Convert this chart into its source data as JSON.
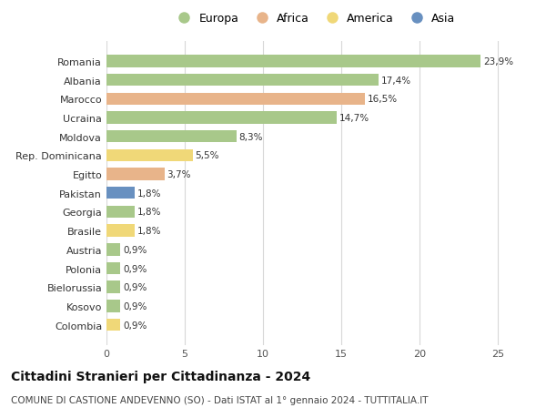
{
  "countries": [
    "Romania",
    "Albania",
    "Marocco",
    "Ucraina",
    "Moldova",
    "Rep. Dominicana",
    "Egitto",
    "Pakistan",
    "Georgia",
    "Brasile",
    "Austria",
    "Polonia",
    "Bielorussia",
    "Kosovo",
    "Colombia"
  ],
  "values": [
    23.9,
    17.4,
    16.5,
    14.7,
    8.3,
    5.5,
    3.7,
    1.8,
    1.8,
    1.8,
    0.9,
    0.9,
    0.9,
    0.9,
    0.9
  ],
  "labels": [
    "23,9%",
    "17,4%",
    "16,5%",
    "14,7%",
    "8,3%",
    "5,5%",
    "3,7%",
    "1,8%",
    "1,8%",
    "1,8%",
    "0,9%",
    "0,9%",
    "0,9%",
    "0,9%",
    "0,9%"
  ],
  "continents": [
    "Europa",
    "Europa",
    "Africa",
    "Europa",
    "Europa",
    "America",
    "Africa",
    "Asia",
    "Europa",
    "America",
    "Europa",
    "Europa",
    "Europa",
    "Europa",
    "America"
  ],
  "continent_colors": {
    "Europa": "#a8c88a",
    "Africa": "#e8b48a",
    "America": "#f0d878",
    "Asia": "#6890c0"
  },
  "legend_order": [
    "Europa",
    "Africa",
    "America",
    "Asia"
  ],
  "title": "Cittadini Stranieri per Cittadinanza - 2024",
  "subtitle": "COMUNE DI CASTIONE ANDEVENNO (SO) - Dati ISTAT al 1° gennaio 2024 - TUTTITALIA.IT",
  "xlim": [
    0,
    26.5
  ],
  "xticks": [
    0,
    5,
    10,
    15,
    20,
    25
  ],
  "bg_color": "#ffffff",
  "grid_color": "#d8d8d8",
  "bar_height": 0.65,
  "title_fontsize": 10,
  "subtitle_fontsize": 7.5,
  "label_fontsize": 7.5,
  "tick_fontsize": 8,
  "legend_fontsize": 9
}
